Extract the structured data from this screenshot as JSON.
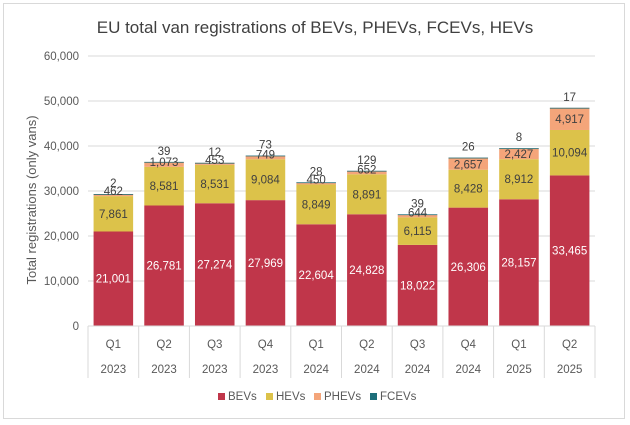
{
  "chart_data": {
    "type": "bar",
    "stacked": true,
    "title": "EU total van registrations of BEVs, PHEVs, FCEVs, HEVs",
    "xlabel": "",
    "ylabel": "Total registrations (only vans)",
    "ylim": [
      0,
      60000
    ],
    "yticks": [
      0,
      10000,
      20000,
      30000,
      40000,
      50000,
      60000
    ],
    "ytick_labels": [
      "0",
      "10,000",
      "20,000",
      "30,000",
      "40,000",
      "50,000",
      "60,000"
    ],
    "grid": true,
    "legend_position": "bottom",
    "categories": [
      {
        "quarter": "Q1",
        "year": "2023"
      },
      {
        "quarter": "Q2",
        "year": "2023"
      },
      {
        "quarter": "Q3",
        "year": "2023"
      },
      {
        "quarter": "Q4",
        "year": "2023"
      },
      {
        "quarter": "Q1",
        "year": "2024"
      },
      {
        "quarter": "Q2",
        "year": "2024"
      },
      {
        "quarter": "Q3",
        "year": "2024"
      },
      {
        "quarter": "Q4",
        "year": "2024"
      },
      {
        "quarter": "Q1",
        "year": "2025"
      },
      {
        "quarter": "Q2",
        "year": "2025"
      }
    ],
    "series": [
      {
        "name": "BEVs",
        "color": "#c0364a",
        "label_color": "#ffffff",
        "values": [
          21001,
          26781,
          27274,
          27969,
          22604,
          24828,
          18022,
          26306,
          28157,
          33465
        ]
      },
      {
        "name": "HEVs",
        "color": "#dcc24a",
        "label_color": "#404040",
        "values": [
          7861,
          8581,
          8531,
          9084,
          8849,
          8891,
          6115,
          8428,
          8912,
          10094
        ]
      },
      {
        "name": "PHEVs",
        "color": "#f4a57a",
        "label_color": "#404040",
        "values": [
          462,
          1073,
          453,
          749,
          450,
          652,
          644,
          2657,
          2427,
          4917
        ]
      },
      {
        "name": "FCEVs",
        "color": "#1d6e7a",
        "label_color": "#404040",
        "values": [
          2,
          39,
          12,
          73,
          28,
          129,
          39,
          26,
          8,
          17
        ]
      }
    ]
  }
}
